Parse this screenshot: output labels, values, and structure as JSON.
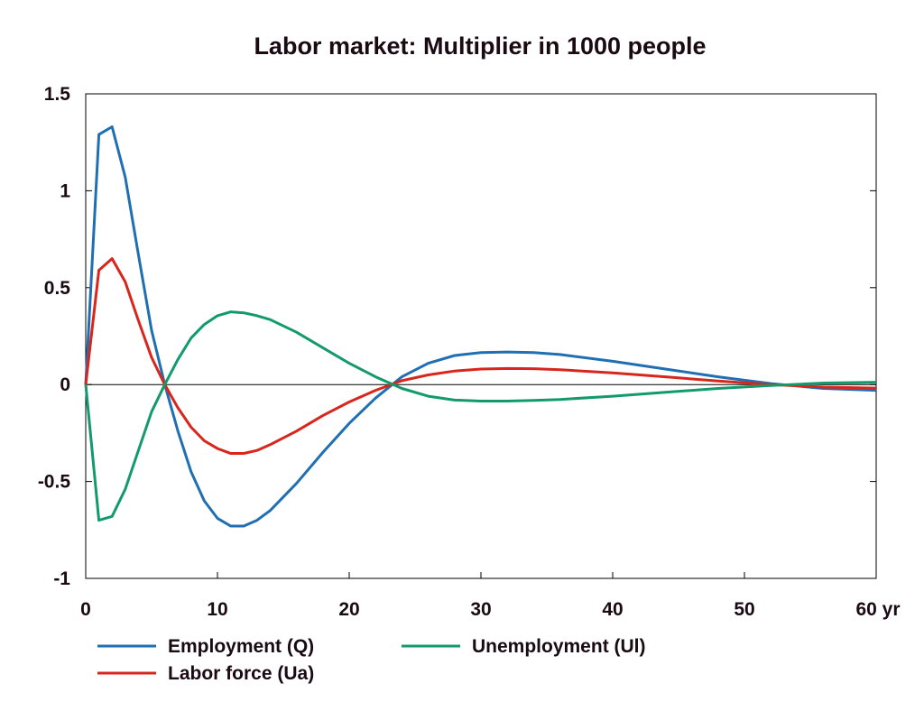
{
  "chart_data": {
    "type": "line",
    "title": "Labor market: Multiplier in 1000 people",
    "xlim": [
      0,
      60
    ],
    "ylim": [
      -1,
      1.5
    ],
    "x_ticks": [
      0,
      10,
      20,
      30,
      40,
      50,
      60
    ],
    "x_tick_labels": [
      "0",
      "10",
      "20",
      "30",
      "40",
      "50",
      "60 yr"
    ],
    "y_ticks": [
      1.5,
      1,
      0.5,
      0,
      -0.5,
      -1
    ],
    "y_tick_labels": [
      "1.5",
      "1",
      "0.5",
      "0",
      "-0.5",
      "-1"
    ],
    "zero_line": true,
    "grid": false,
    "legend_position": "bottom",
    "series": [
      {
        "name": "Employment (Q)",
        "color": "#1f6fb2",
        "x": [
          0,
          1,
          2,
          3,
          4,
          5,
          6,
          7,
          8,
          9,
          10,
          11,
          12,
          13,
          14,
          16,
          18,
          20,
          22,
          24,
          26,
          28,
          30,
          32,
          34,
          36,
          40,
          44,
          48,
          52,
          56,
          60
        ],
        "y": [
          0,
          1.29,
          1.33,
          1.07,
          0.67,
          0.28,
          0.0,
          -0.24,
          -0.45,
          -0.6,
          -0.69,
          -0.73,
          -0.73,
          -0.7,
          -0.65,
          -0.51,
          -0.35,
          -0.2,
          -0.07,
          0.04,
          0.11,
          0.15,
          0.165,
          0.168,
          0.165,
          0.155,
          0.12,
          0.08,
          0.04,
          0.005,
          -0.02,
          -0.03
        ]
      },
      {
        "name": "Labor force (Ua)",
        "color": "#d8261c",
        "x": [
          0,
          1,
          2,
          3,
          4,
          5,
          6,
          7,
          8,
          9,
          10,
          11,
          12,
          13,
          14,
          16,
          18,
          20,
          22,
          24,
          26,
          28,
          30,
          32,
          34,
          36,
          40,
          44,
          48,
          52,
          56,
          60
        ],
        "y": [
          0,
          0.59,
          0.65,
          0.53,
          0.33,
          0.14,
          0.0,
          -0.12,
          -0.22,
          -0.29,
          -0.33,
          -0.355,
          -0.355,
          -0.34,
          -0.31,
          -0.24,
          -0.16,
          -0.09,
          -0.03,
          0.02,
          0.05,
          0.07,
          0.08,
          0.083,
          0.082,
          0.077,
          0.06,
          0.04,
          0.018,
          0.0,
          -0.013,
          -0.018
        ]
      },
      {
        "name": "Unemployment (Ul)",
        "color": "#129a6c",
        "x": [
          0,
          1,
          2,
          3,
          4,
          5,
          6,
          7,
          8,
          9,
          10,
          11,
          12,
          13,
          14,
          16,
          18,
          20,
          22,
          24,
          26,
          28,
          30,
          32,
          34,
          36,
          40,
          44,
          48,
          52,
          56,
          60
        ],
        "y": [
          0,
          -0.7,
          -0.68,
          -0.54,
          -0.34,
          -0.14,
          0.0,
          0.13,
          0.24,
          0.31,
          0.355,
          0.375,
          0.37,
          0.355,
          0.335,
          0.27,
          0.19,
          0.11,
          0.04,
          -0.02,
          -0.06,
          -0.08,
          -0.085,
          -0.085,
          -0.082,
          -0.077,
          -0.06,
          -0.04,
          -0.02,
          -0.005,
          0.008,
          0.012
        ]
      }
    ]
  }
}
